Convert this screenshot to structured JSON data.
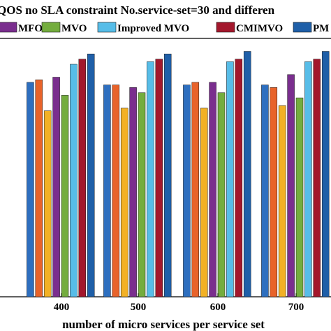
{
  "chart_data": {
    "type": "bar",
    "title": "QOS no SLA constraint  No.service-set=30 and differen",
    "xlabel": "number of micro services per service set",
    "ylabel": "",
    "categories": [
      "400",
      "500",
      "600",
      "700"
    ],
    "legend_location": "top",
    "grid": false,
    "series": [
      {
        "name": "",
        "color": "#2e6fbf",
        "values": [
          83,
          82,
          82,
          82
        ]
      },
      {
        "name": "",
        "color": "#e8632a",
        "values": [
          84,
          82,
          83,
          81
        ]
      },
      {
        "name": "",
        "color": "#f2b125",
        "values": [
          72,
          73,
          73,
          74
        ]
      },
      {
        "name": "MFO",
        "color": "#7a2e8e",
        "values": [
          85,
          81,
          83,
          86
        ]
      },
      {
        "name": "MVO",
        "color": "#74ad3e",
        "values": [
          78,
          79,
          79,
          77
        ]
      },
      {
        "name": "Improved MVO",
        "color": "#57bde8",
        "values": [
          90,
          91,
          91,
          91
        ]
      },
      {
        "name": "CMIMVO",
        "color": "#a3172c",
        "values": [
          92,
          92,
          92,
          92
        ]
      },
      {
        "name": "PM",
        "color": "#1f5fa8",
        "values": [
          94,
          94,
          95,
          95
        ]
      }
    ],
    "ylim": [
      0,
      100
    ]
  }
}
